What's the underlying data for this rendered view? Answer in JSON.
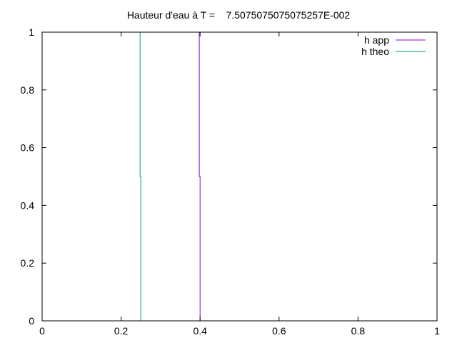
{
  "chart_data": {
    "type": "line",
    "title": "Hauteur d'eau à T =    7.5075075075075257E-002",
    "xlabel": "",
    "ylabel": "",
    "xlim": [
      0,
      1
    ],
    "ylim": [
      0,
      1
    ],
    "grid": false,
    "legend_position": "top-right",
    "x_ticks": [
      0,
      0.2,
      0.4,
      0.6,
      0.8,
      1
    ],
    "x_tick_labels": [
      "0",
      "0.2",
      "0.4",
      "0.6",
      "0.8",
      "1"
    ],
    "y_ticks": [
      0,
      0.2,
      0.4,
      0.6,
      0.8,
      1
    ],
    "y_tick_labels": [
      "0",
      "0.2",
      "0.4",
      "0.6",
      "0.8",
      "1"
    ],
    "series": [
      {
        "name": "h app",
        "color": "#9400d3",
        "x": [
          0.398,
          0.398,
          0.4,
          0.4
        ],
        "y": [
          1,
          0.5,
          0.5,
          0
        ]
      },
      {
        "name": "h theo",
        "color": "#009e73",
        "x": [
          0.248,
          0.248,
          0.25,
          0.25
        ],
        "y": [
          1,
          0.5,
          0.5,
          0
        ]
      }
    ]
  }
}
